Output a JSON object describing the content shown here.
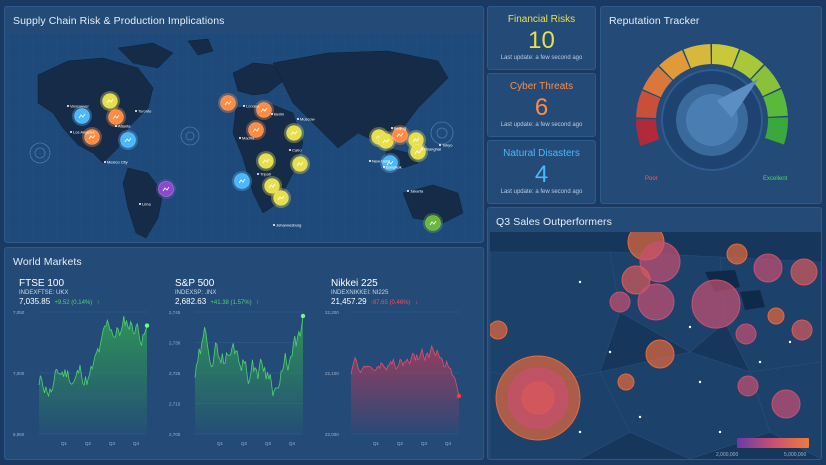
{
  "colors": {
    "background": "#1b3a63",
    "panel": "#244a78",
    "financial": "#e8e04a",
    "cyber": "#ff8c42",
    "natural": "#4ab8ff",
    "positive": "#4fd36a",
    "negative": "#ff4a4a"
  },
  "supply": {
    "title": "Supply Chain Risk & Production Implications",
    "cities": [
      {
        "name": "Vancouver"
      },
      {
        "name": "Toronto"
      },
      {
        "name": "Los Angeles"
      },
      {
        "name": "Atlanta"
      },
      {
        "name": "Mexico City"
      },
      {
        "name": "London"
      },
      {
        "name": "Berlin"
      },
      {
        "name": "Moscow"
      },
      {
        "name": "Madrid"
      },
      {
        "name": "Tripoli"
      },
      {
        "name": "Cairo"
      },
      {
        "name": "New Delhi"
      },
      {
        "name": "Beijing"
      },
      {
        "name": "Tokyo"
      },
      {
        "name": "Shanghai"
      },
      {
        "name": "Bangkok"
      },
      {
        "name": "Lima"
      },
      {
        "name": "Johannesburg"
      },
      {
        "name": "Sydney"
      },
      {
        "name": "Jakarta"
      }
    ]
  },
  "kpis": [
    {
      "label": "Financial Risks",
      "value": "10",
      "update": "Last update: a few second ago"
    },
    {
      "label": "Cyber Threats",
      "value": "6",
      "update": "Last update: a few second ago"
    },
    {
      "label": "Natural Disasters",
      "value": "4",
      "update": "Last update: a few second ago"
    }
  ],
  "reputation": {
    "title": "Reputation Tracker",
    "poor_label": "Poor",
    "excellent_label": "Excellent",
    "level": 0.72
  },
  "markets": {
    "title": "World Markets",
    "items": [
      {
        "name": "FTSE 100",
        "index": "INDEXFTSE: UKX",
        "price": "7,035.85",
        "change": "+9.52 (0.14%)",
        "direction": "up",
        "yticks": [
          "7,050",
          "7,000",
          "6,950"
        ],
        "xticks": [
          "Q1",
          "Q2",
          "Q3",
          "Q4"
        ]
      },
      {
        "name": "S&P 500",
        "index": "INDEXSP: .INX",
        "price": "2,682.63",
        "change": "+41.38 (1.57%)",
        "direction": "up",
        "yticks": [
          "2,745",
          "2,730",
          "2,725",
          "2,715",
          "2,700"
        ],
        "xticks": [
          "Q1",
          "Q2",
          "Q3",
          "Q4"
        ]
      },
      {
        "name": "Nikkei 225",
        "index": "INDEXNIKKEI: NI225",
        "price": "21,457.29",
        "change": "-97.65 (0.46%)",
        "direction": "down",
        "yticks": [
          "22,200",
          "22,100",
          "22,000"
        ],
        "xticks": [
          "Q1",
          "Q2",
          "Q3",
          "Q4"
        ]
      }
    ]
  },
  "q3": {
    "title": "Q3 Sales Outperformers",
    "scale_min": "2,000,000",
    "scale_max": "5,000,000"
  }
}
